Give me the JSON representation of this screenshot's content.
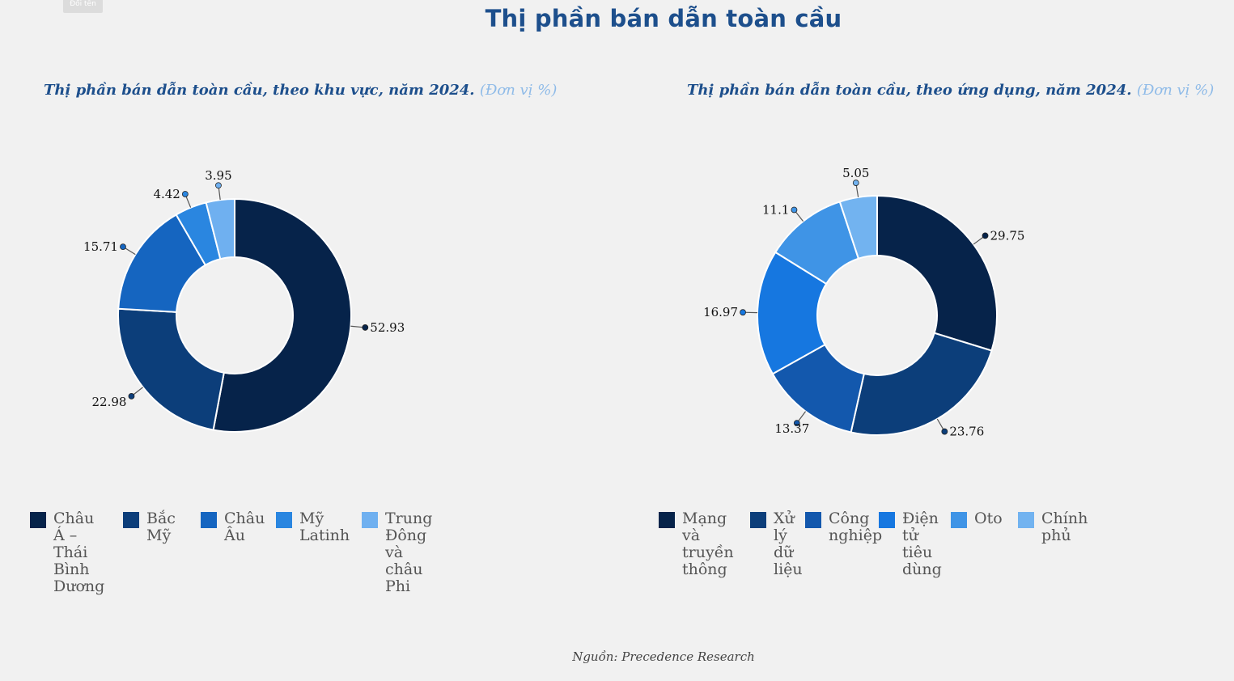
{
  "rename_label": "Đổi tên",
  "title": "Thị phần bán dẫn toàn cầu",
  "source": "Nguồn: Precedence Research",
  "chart_data": [
    {
      "type": "pie",
      "title": "Thị phần bán dẫn toàn cầu, theo khu vực, năm 2024.",
      "unit": "(Đơn vị %)",
      "categories": [
        "Châu Á – Thái Bình Dương",
        "Bắc Mỹ",
        "Châu Âu",
        "Mỹ Latinh",
        "Trung Đông và châu Phi"
      ],
      "values": [
        52.93,
        22.98,
        15.71,
        4.42,
        3.95
      ],
      "labels": [
        "52.93",
        "22.98",
        "15.71",
        "4.42",
        "3.95"
      ],
      "colors": [
        "#06234a",
        "#0c3e7a",
        "#1565c0",
        "#2a86e0",
        "#6fb0f0"
      ],
      "legend": "bottom"
    },
    {
      "type": "pie",
      "title": "Thị phần bán dẫn toàn cầu, theo ứng dụng, năm 2024.",
      "unit": "(Đơn vị %)",
      "categories": [
        "Mạng và truyền thông",
        "Xử lý dữ liệu",
        "Công nghiệp",
        "Điện tử tiêu dùng",
        "Oto",
        "Chính phủ"
      ],
      "values": [
        29.75,
        23.76,
        13.37,
        16.97,
        11.1,
        5.05
      ],
      "labels": [
        "29.75",
        "23.76",
        "13.37",
        "16.97",
        "11.1",
        "5.05"
      ],
      "colors": [
        "#06234a",
        "#0c3e7a",
        "#1358ad",
        "#1677e0",
        "#3f94e6",
        "#72b3f0"
      ],
      "legend": "bottom"
    }
  ]
}
